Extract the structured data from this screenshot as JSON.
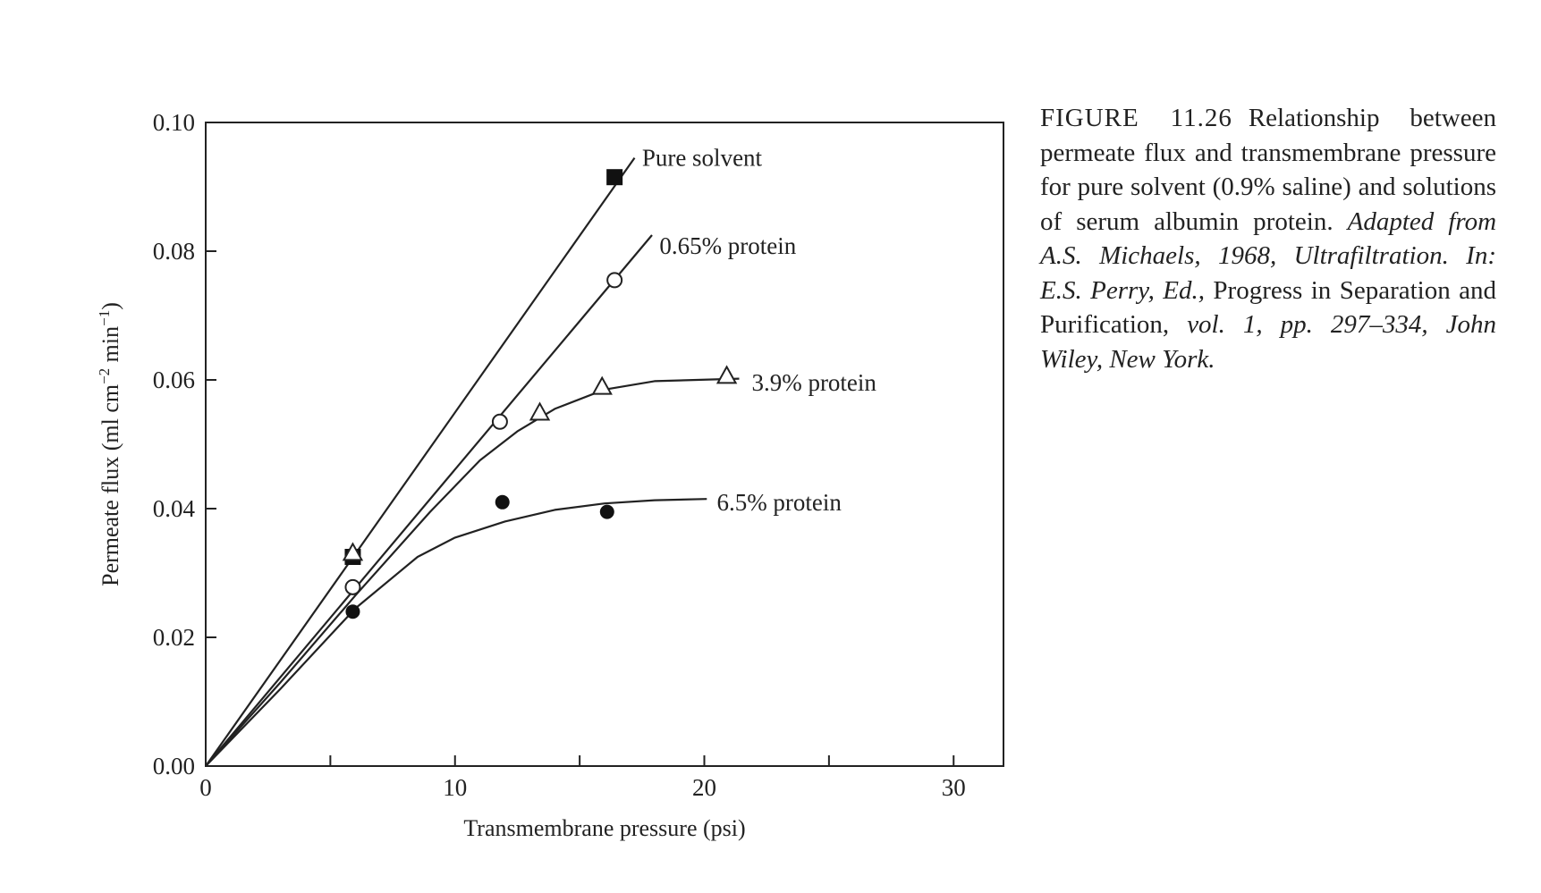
{
  "chart_data": {
    "type": "line",
    "xlabel": "Transmembrane pressure (psi)",
    "ylabel": "Permeate flux (ml cm",
    "ylabel_sup1": "−2",
    "ylabel_mid": " min",
    "ylabel_sup2": "−1",
    "ylabel_end": ")",
    "xlim": [
      0,
      32
    ],
    "ylim": [
      0,
      0.1
    ],
    "xticks": [
      0,
      10,
      20,
      30
    ],
    "xtick_labels": [
      "0",
      "10",
      "20",
      "30"
    ],
    "xminor": [
      5,
      15,
      25
    ],
    "yticks": [
      0,
      0.02,
      0.04,
      0.06,
      0.08,
      0.1
    ],
    "ytick_labels": [
      "0.00",
      "0.02",
      "0.04",
      "0.06",
      "0.08",
      "0.10"
    ],
    "grid": false,
    "series": [
      {
        "name": "Pure solvent",
        "marker": "filled-square",
        "points": [
          [
            5.9,
            0.0325
          ],
          [
            16.4,
            0.0915
          ]
        ],
        "curve": [
          [
            0,
            0
          ],
          [
            17.2,
            0.0945
          ]
        ],
        "label_anchor": [
          17.5,
          0.0945
        ]
      },
      {
        "name": "0.65% protein",
        "marker": "open-circle",
        "points": [
          [
            5.9,
            0.0278
          ],
          [
            11.8,
            0.0535
          ],
          [
            16.4,
            0.0755
          ]
        ],
        "curve": [
          [
            0,
            0
          ],
          [
            17.9,
            0.0825
          ]
        ],
        "label_anchor": [
          18.2,
          0.0808
        ]
      },
      {
        "name": "3.9% protein",
        "marker": "open-triangle",
        "points": [
          [
            5.9,
            0.033
          ],
          [
            13.4,
            0.0548
          ],
          [
            15.9,
            0.0588
          ],
          [
            20.9,
            0.0605
          ]
        ],
        "curve": [
          [
            0,
            0
          ],
          [
            3,
            0.013
          ],
          [
            6,
            0.0265
          ],
          [
            9,
            0.0395
          ],
          [
            11,
            0.0475
          ],
          [
            12.5,
            0.052
          ],
          [
            14,
            0.0555
          ],
          [
            16,
            0.0585
          ],
          [
            18,
            0.0598
          ],
          [
            21.4,
            0.0602
          ]
        ],
        "label_anchor": [
          21.9,
          0.0596
        ]
      },
      {
        "name": "6.5% protein",
        "marker": "filled-circle",
        "points": [
          [
            5.9,
            0.024
          ],
          [
            11.9,
            0.041
          ],
          [
            16.1,
            0.0395
          ]
        ],
        "curve": [
          [
            0,
            0
          ],
          [
            3,
            0.012
          ],
          [
            6,
            0.0245
          ],
          [
            8.5,
            0.0325
          ],
          [
            10,
            0.0355
          ],
          [
            12,
            0.038
          ],
          [
            14,
            0.0398
          ],
          [
            16,
            0.0408
          ],
          [
            18,
            0.0413
          ],
          [
            20.1,
            0.0415
          ]
        ],
        "label_anchor": [
          20.5,
          0.041
        ]
      }
    ]
  },
  "caption": {
    "figure_label": "FIGURE 11.26",
    "text": "Relationship between permeate flux and transmembrane pressure for pure solvent (0.9% saline) and solutions of serum albumin protein.",
    "source_italic": "Adapted from A.S. Michaels, 1968, Ultrafiltration. In: E.S. Perry, Ed.,",
    "source_roman": "Progress in Separation and Purification,",
    "source_italic_2": "vol. 1, pp. 297–334, John Wiley, New York."
  }
}
